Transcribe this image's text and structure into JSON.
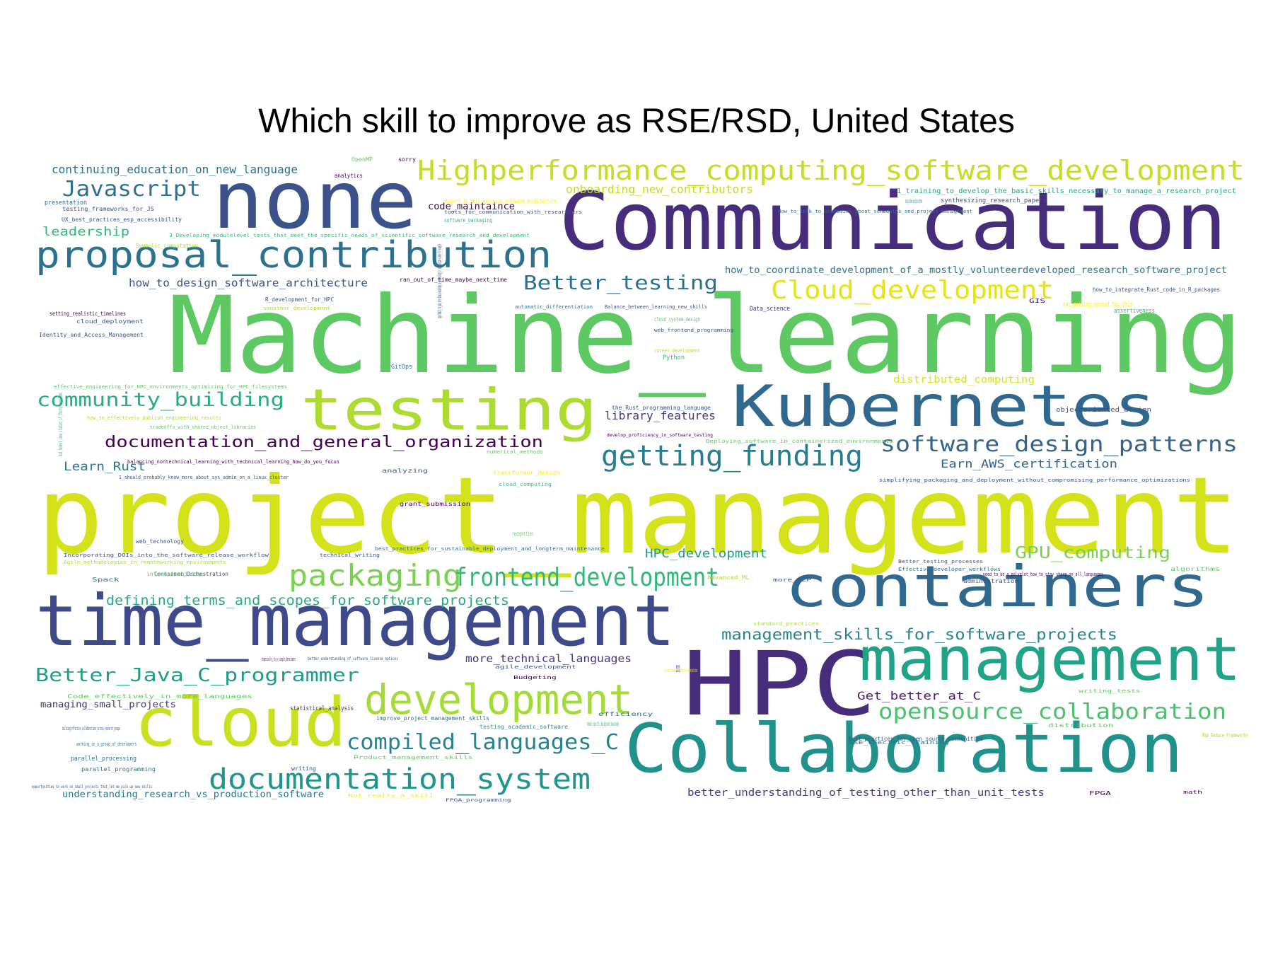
{
  "title": "Which skill to improve as RSE/RSD, United States",
  "palette": [
    "#440154",
    "#472d7b",
    "#3b528b",
    "#2c728e",
    "#21918c",
    "#28ae80",
    "#5ec962",
    "#addc30",
    "#fde725"
  ],
  "words": [
    {
      "text": "project_management",
      "color": "#d4e21a"
    },
    {
      "text": "Machine_learning",
      "color": "#5ec962"
    },
    {
      "text": "Communication",
      "color": "#472d7b"
    },
    {
      "text": "none",
      "color": "#3b528b"
    },
    {
      "text": "HPC",
      "color": "#472d7b"
    },
    {
      "text": "time_management",
      "color": "#3e4a89"
    },
    {
      "text": "containers",
      "color": "#31688e"
    },
    {
      "text": "Collaboration",
      "color": "#21918c"
    },
    {
      "text": "cloud",
      "color": "#c8e020"
    },
    {
      "text": "Kubernetes",
      "color": "#31688e"
    },
    {
      "text": "testing",
      "color": "#addc30"
    },
    {
      "text": "management",
      "color": "#20a386"
    },
    {
      "text": "proposal_contribution",
      "color": "#2c728e"
    },
    {
      "text": "Highperformance_computing_software_development",
      "color": "#c2df23"
    },
    {
      "text": "development",
      "color": "#a5db36"
    },
    {
      "text": "documentation_system",
      "color": "#1f968b"
    },
    {
      "text": "getting_funding",
      "color": "#287d8e"
    },
    {
      "text": "Cloud_development",
      "color": "#e5e419"
    },
    {
      "text": "packaging",
      "color": "#7ad151"
    },
    {
      "text": "frontend_development",
      "color": "#35b779"
    },
    {
      "text": "software_design_patterns",
      "color": "#33638d"
    },
    {
      "text": "opensource_collaboration",
      "color": "#4ac16d"
    },
    {
      "text": "compiled_languages_C",
      "color": "#26828e"
    },
    {
      "text": "Better_Java_C_programmer",
      "color": "#1f9e89"
    },
    {
      "text": "community_building",
      "color": "#27ad81"
    },
    {
      "text": "Javascript",
      "color": "#2c728e"
    },
    {
      "text": "Better_testing",
      "color": "#2c728e"
    },
    {
      "text": "documentation_and_general_organization",
      "color": "#440154"
    },
    {
      "text": "management_skills_for_software_projects",
      "color": "#25858e"
    },
    {
      "text": "defining_terms_and_scopes_for_software_projects",
      "color": "#25ab82"
    },
    {
      "text": "GPU_computing",
      "color": "#7ad151"
    },
    {
      "text": "HPC_development",
      "color": "#1f9e89"
    },
    {
      "text": "library_features",
      "color": "#443983"
    },
    {
      "text": "onboarding_new_contributors",
      "color": "#bddf26"
    },
    {
      "text": "Learn_Rust",
      "color": "#2a788e"
    },
    {
      "text": "Earn_AWS_certification",
      "color": "#33638d"
    },
    {
      "text": "understanding_research_vs_production_software",
      "color": "#2a788e"
    },
    {
      "text": "better_understanding_of_testing_other_than_unit_tests",
      "color": "#433e85"
    },
    {
      "text": "Get_better_at_C",
      "color": "#481f70"
    },
    {
      "text": "continuing_education_on_new_language",
      "color": "#2c728e"
    },
    {
      "text": "leadership",
      "color": "#35b779"
    },
    {
      "text": "how_to_design_software_architecture",
      "color": "#3b528b"
    },
    {
      "text": "more_technical_languages",
      "color": "#46327e"
    },
    {
      "text": "how_to_coordinate_development_of_a_mostly_volunteerdeveloped_research_software_project",
      "color": "#2c728e"
    },
    {
      "text": "distributed_computing",
      "color": "#d8e219"
    },
    {
      "text": "managing_small_projects",
      "color": "#46327e"
    },
    {
      "text": "code_maintaince",
      "color": "#440154"
    },
    {
      "text": "1_training_to_develop_the_basic_skills_necessary_to_manage_a_research_project",
      "color": "#21a685"
    },
    {
      "text": "synthesizing_research_papers",
      "color": "#3b528b"
    },
    {
      "text": "Data_science",
      "color": "#472d7b"
    },
    {
      "text": "GitOps",
      "color": "#2c728e"
    },
    {
      "text": "Python",
      "color": "#35b779"
    },
    {
      "text": "web_technology",
      "color": "#3b528b"
    },
    {
      "text": "technical_writing",
      "color": "#3b528b"
    },
    {
      "text": "Spack",
      "color": "#2c728e"
    },
    {
      "text": "Container_Orchestration",
      "color": "#3b528b"
    },
    {
      "text": "writing",
      "color": "#3b528b"
    },
    {
      "text": "parallel_processing",
      "color": "#2c728e"
    },
    {
      "text": "parallel_programming",
      "color": "#2c728e"
    },
    {
      "text": "statistical_analysis",
      "color": "#472d7b"
    },
    {
      "text": "improve_project_management_skills",
      "color": "#2c728e"
    },
    {
      "text": "testing_academic_software",
      "color": "#21918c"
    },
    {
      "text": "best_practices_for_open_source_communities",
      "color": "#3b528b"
    },
    {
      "text": "objectoriented_design",
      "color": "#3b528b"
    },
    {
      "text": "analytics",
      "color": "#440154"
    },
    {
      "text": "sorry",
      "color": "#440154"
    },
    {
      "text": "OpenMP",
      "color": "#5ec962"
    },
    {
      "text": "presentation",
      "color": "#2c728e"
    },
    {
      "text": "testing_frameworks_for_JS",
      "color": "#3b528b"
    },
    {
      "text": "UX_best_practices_esp_accessibility",
      "color": "#3b528b"
    },
    {
      "text": "Symbolic_computation",
      "color": "#addc30"
    },
    {
      "text": "3_Developing_modulelevel_tests_that_meet_the_specific_needs_of_scientific_software_research_and_development",
      "color": "#35b779"
    },
    {
      "text": "software_packaging",
      "color": "#35b779"
    },
    {
      "text": "support_to_help_optimize_software_architecture",
      "color": "#fde725"
    },
    {
      "text": "tools_for_communication_with_researchers",
      "color": "#3b528b"
    },
    {
      "text": "How_to_talk_to_academics_about_schedules_and_project_management",
      "color": "#2c728e"
    },
    {
      "text": "setting_realistic_timelines",
      "color": "#440154"
    },
    {
      "text": "cloud_deployment",
      "color": "#3b528b"
    },
    {
      "text": "Identity_and_Access_Management",
      "color": "#3b528b"
    },
    {
      "text": "R_development_for_HPC",
      "color": "#3b528b"
    },
    {
      "text": "smoother_development",
      "color": "#addc30"
    },
    {
      "text": "ran_out_of_time_maybe_next_time",
      "color": "#440154"
    },
    {
      "text": "automatic_differentiation",
      "color": "#2c728e"
    },
    {
      "text": "Balance_between_learning_new_skills",
      "color": "#3b528b"
    },
    {
      "text": "cloud_system_design",
      "color": "#5ec962"
    },
    {
      "text": "web_frontend_programming",
      "color": "#3b528b"
    },
    {
      "text": "career_development",
      "color": "#addc30"
    },
    {
      "text": "how_to_integrate_Rust_code_in_R_packages",
      "color": "#3b528b"
    },
    {
      "text": "not_getting_spread_too_thin",
      "color": "#fde725"
    },
    {
      "text": "assertiveness",
      "color": "#35b779"
    },
    {
      "text": "GIS",
      "color": "#440154"
    },
    {
      "text": "effective_engineering_for_HPC_environments_optimizing_for_HPC_filesystems",
      "color": "#5ec962"
    },
    {
      "text": "how_to_effectively_publish_engineering_results",
      "color": "#addc30"
    },
    {
      "text": "tradeoffs_with_shared_object_libraries",
      "color": "#5ec962"
    },
    {
      "text": "the_Rust_programming_language",
      "color": "#3b528b"
    },
    {
      "text": "develop_proficiency_in_software_testing",
      "color": "#440154"
    },
    {
      "text": "Deploying_software_in_containerized_environments",
      "color": "#5ec962"
    },
    {
      "text": "numerical_methods",
      "color": "#5ec962"
    },
    {
      "text": "balancing_nontechnical_learning_with_technical_learning_how_do_you_focus",
      "color": "#440154"
    },
    {
      "text": "analyzing",
      "color": "#3b528b"
    },
    {
      "text": "1_should_probably_know_more_about_sys_admin_on_a_linux_cluster",
      "color": "#3b528b"
    },
    {
      "text": "transformer_design",
      "color": "#fde725"
    },
    {
      "text": "cloud_computing",
      "color": "#35b779"
    },
    {
      "text": "simplifying_packaging_and_deployment_without_compromising_performance_optimizations",
      "color": "#3b528b"
    },
    {
      "text": "grant_submission",
      "color": "#440154"
    },
    {
      "text": "Incorporating_DOIs_into_the_software_release_workflow",
      "color": "#3b528b"
    },
    {
      "text": "Agile_methodologies_in_remoteworking_environments",
      "color": "#addc30"
    },
    {
      "text": "best_practices_for_sustainable_deployment_and_longterm_maintenance",
      "color": "#2c728e"
    },
    {
      "text": "Better_testing_processes",
      "color": "#3b528b"
    },
    {
      "text": "Effective_developer_workflows",
      "color": "#2c728e"
    },
    {
      "text": "algorithms",
      "color": "#5ec962"
    },
    {
      "text": "administration",
      "color": "#3b528b"
    },
    {
      "text": "need_to_be_a_polyglot_how_to_stay_sharp_on_all_languages",
      "color": "#440154"
    },
    {
      "text": "interoperability",
      "color": "#5ec962"
    },
    {
      "text": "standard_practices",
      "color": "#addc30"
    },
    {
      "text": "more_NLP",
      "color": "#3b528b"
    },
    {
      "text": "Advanced_ML",
      "color": "#addc30"
    },
    {
      "text": "especially_in_a_single_developer",
      "color": "#440154"
    },
    {
      "text": "better_understanding_of_software_license_options",
      "color": "#3b528b"
    },
    {
      "text": "agile_development",
      "color": "#3b528b"
    },
    {
      "text": "Budgeting",
      "color": "#440154"
    },
    {
      "text": "2_A_refresher_course_on_writing_papers_for_conference_and_publication",
      "color": "#fde725"
    },
    {
      "text": "Code_effectively_in_more_languages",
      "color": "#5ec962"
    },
    {
      "text": "writing_tests",
      "color": "#5ec962"
    },
    {
      "text": "efficiency",
      "color": "#2c728e"
    },
    {
      "text": "domain_specific_background_knowledge",
      "color": "#35b779"
    },
    {
      "text": "distribution",
      "color": "#5ec962"
    },
    {
      "text": "RSE_specific_training",
      "color": "#2c728e"
    },
    {
      "text": "Map_Reduce_frameworks",
      "color": "#addc30"
    },
    {
      "text": "building_effective_collaborations_across_research_groups",
      "color": "#3b528b"
    },
    {
      "text": "working_in_a_group_of_developers",
      "color": "#2c728e"
    },
    {
      "text": "Product_management_skills",
      "color": "#5ec962"
    },
    {
      "text": "opportunities_to_work_on_small_projects_that_let_me_pick_up_new_skills",
      "color": "#3b528b"
    },
    {
      "text": "Not_really_a_skill",
      "color": "#fde725"
    },
    {
      "text": "FPGA_programming",
      "color": "#3b528b"
    },
    {
      "text": "FPGA",
      "color": "#440154"
    },
    {
      "text": "math",
      "color": "#440154"
    },
    {
      "text": "recognition",
      "color": "#5ec962"
    },
    {
      "text": "testing_software_on_multiple_platforms",
      "color": "#2c728e"
    },
    {
      "text": "general_programming",
      "color": "#3b528b"
    },
    {
      "text": "but_honest_case_studies_of_thorny_problems",
      "color": "#35b779"
    },
    {
      "text": "opportunity_to_gain_more_domain_knowledge_in_epidemiology_or_information_science_for_example",
      "color": "#3b528b"
    }
  ]
}
